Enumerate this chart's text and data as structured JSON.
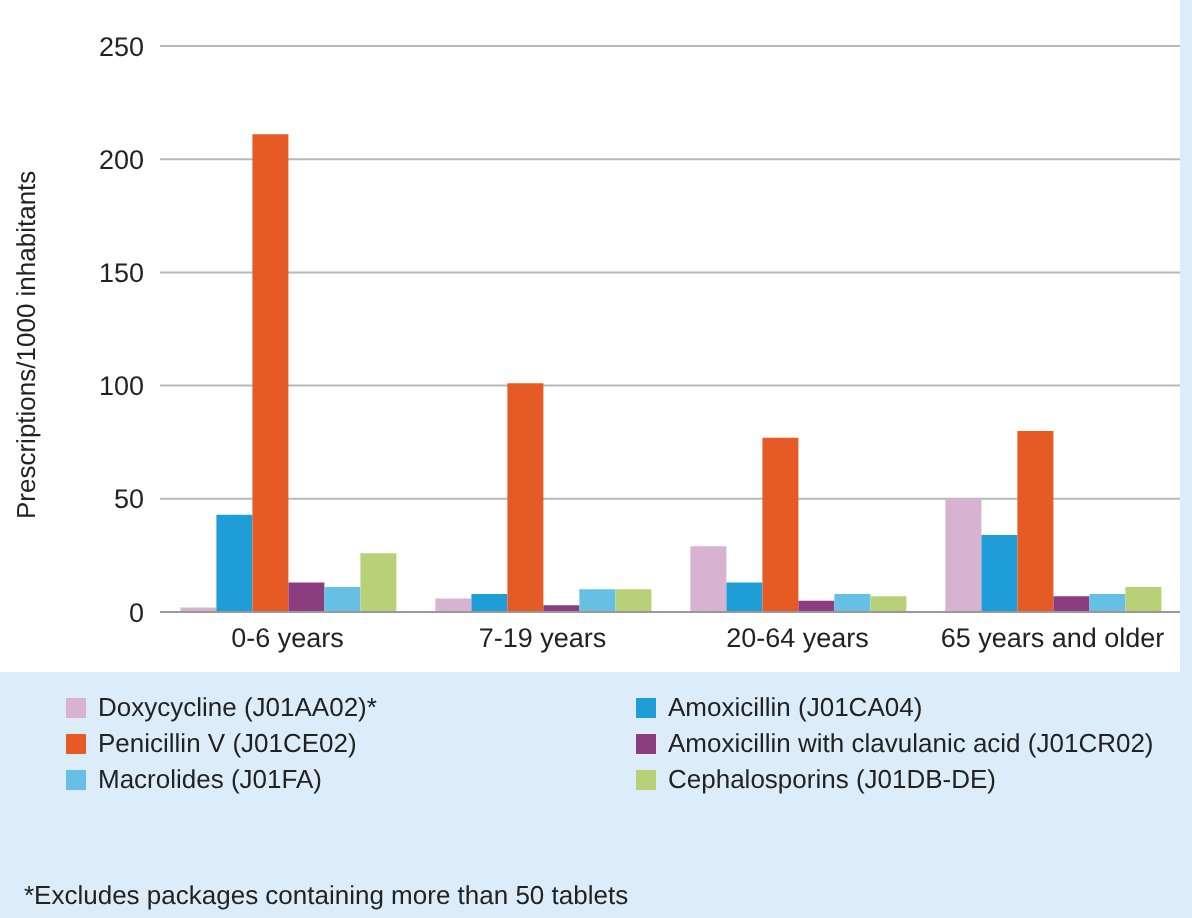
{
  "chart_data": {
    "type": "bar",
    "ylabel": "Prescriptions/1000 inhabitants",
    "categories": [
      "0-6 years",
      "7-19 years",
      "20-64 years",
      "65 years and older"
    ],
    "series": [
      {
        "name": "Doxycycline (J01AA02)*",
        "color": "#d8b2d1",
        "values": [
          2,
          6,
          29,
          50
        ]
      },
      {
        "name": "Amoxicillin (J01CA04)",
        "color": "#1f9dd6",
        "values": [
          43,
          8,
          13,
          34
        ]
      },
      {
        "name": "Penicillin V (J01CE02)",
        "color": "#e55a25",
        "values": [
          211,
          101,
          77,
          80
        ]
      },
      {
        "name": "Amoxicillin with clavulanic acid (J01CR02)",
        "color": "#8b3d80",
        "values": [
          13,
          3,
          5,
          7
        ]
      },
      {
        "name": "Macrolides (J01FA)",
        "color": "#66c0e6",
        "values": [
          11,
          10,
          8,
          8
        ]
      },
      {
        "name": "Cephalosporins (J01DB-DE)",
        "color": "#b8d077",
        "values": [
          26,
          10,
          7,
          11
        ]
      }
    ],
    "ylim": [
      0,
      250
    ],
    "yticks": [
      0,
      50,
      100,
      150,
      200,
      250
    ],
    "grid": "y",
    "legend": "bottom",
    "annotations": [
      "*Excludes packages containing more than 50 tablets"
    ]
  }
}
